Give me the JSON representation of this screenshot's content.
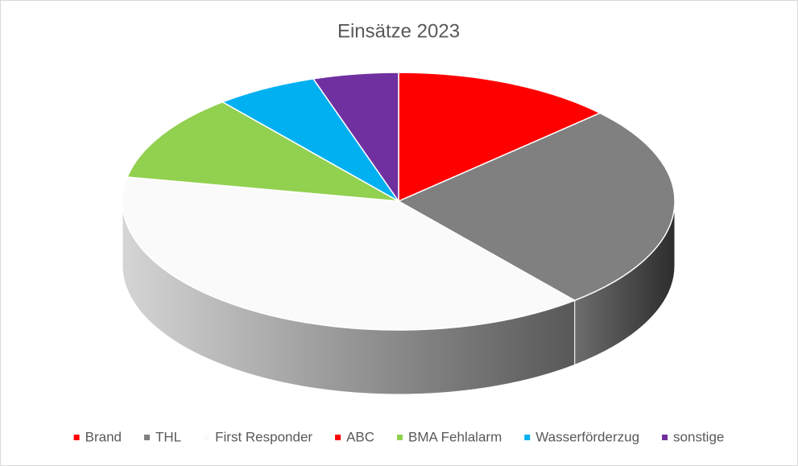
{
  "chart_data": {
    "type": "pie3d",
    "title": "Einsätze 2023",
    "categories": [
      "Brand",
      "THL",
      "First Responder",
      "ABC",
      "BMA Fehlalarm",
      "Wasserförderzug",
      "sonstige"
    ],
    "values": [
      13,
      26,
      39,
      0,
      11,
      6,
      5
    ],
    "colors": [
      "#ff0000",
      "#808080",
      "#fafafa",
      "#ff0000",
      "#92d050",
      "#00b0f0",
      "#7030a0"
    ],
    "legend": "bottom"
  }
}
